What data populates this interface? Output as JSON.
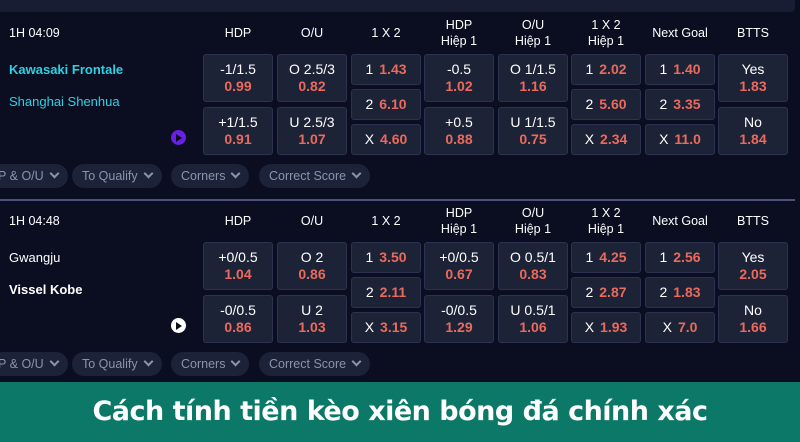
{
  "columns": [
    [
      "HDP"
    ],
    [
      "O/U"
    ],
    [
      "1 X 2"
    ],
    [
      "HDP",
      "Hiệp 1"
    ],
    [
      "O/U",
      "Hiệp 1"
    ],
    [
      "1 X 2",
      "Hiệp 1"
    ],
    [
      "Next Goal"
    ],
    [
      "BTTS"
    ]
  ],
  "matches": [
    {
      "time": "1H  04:09",
      "home": "Kawasaki Frontale",
      "away": "Shanghai Shenhua",
      "team_color": "#2fd0e2",
      "home_bold": true,
      "away_bold": false,
      "play_color": "#6a1fe6",
      "hdp": [
        [
          "-1/1.5",
          "0.99"
        ],
        [
          "+1/1.5",
          "0.91"
        ]
      ],
      "ou": [
        [
          "O 2.5/3",
          "0.82"
        ],
        [
          "U 2.5/3",
          "1.07"
        ]
      ],
      "x12": [
        [
          "1",
          "1.43"
        ],
        [
          "2",
          "6.10"
        ],
        [
          "X",
          "4.60"
        ]
      ],
      "hdp_h1": [
        [
          "-0.5",
          "1.02"
        ],
        [
          "+0.5",
          "0.88"
        ]
      ],
      "ou_h1": [
        [
          "O 1/1.5",
          "1.16"
        ],
        [
          "U 1/1.5",
          "0.75"
        ]
      ],
      "x12_h1": [
        [
          "1",
          "2.02"
        ],
        [
          "2",
          "5.60"
        ],
        [
          "X",
          "2.34"
        ]
      ],
      "next_goal": [
        [
          "1",
          "1.40"
        ],
        [
          "2",
          "3.35"
        ],
        [
          "X",
          "11.0"
        ]
      ],
      "btts": [
        [
          "Yes",
          "1.83"
        ],
        [
          "No",
          "1.84"
        ]
      ]
    },
    {
      "time": "1H  04:48",
      "home": "Gwangju",
      "away": "Vissel Kobe",
      "team_color": "#ffffff",
      "home_bold": false,
      "away_bold": true,
      "play_color": "#ffffff",
      "hdp": [
        [
          "+0/0.5",
          "1.04"
        ],
        [
          "-0/0.5",
          "0.86"
        ]
      ],
      "ou": [
        [
          "O 2",
          "0.86"
        ],
        [
          "U 2",
          "1.03"
        ]
      ],
      "x12": [
        [
          "1",
          "3.50"
        ],
        [
          "2",
          "2.11"
        ],
        [
          "X",
          "3.15"
        ]
      ],
      "hdp_h1": [
        [
          "+0/0.5",
          "0.67"
        ],
        [
          "-0/0.5",
          "1.29"
        ]
      ],
      "ou_h1": [
        [
          "O 0.5/1",
          "0.83"
        ],
        [
          "U 0.5/1",
          "1.06"
        ]
      ],
      "x12_h1": [
        [
          "1",
          "4.25"
        ],
        [
          "2",
          "2.87"
        ],
        [
          "X",
          "1.93"
        ]
      ],
      "next_goal": [
        [
          "1",
          "2.56"
        ],
        [
          "2",
          "1.83"
        ],
        [
          "X",
          "7.0"
        ]
      ],
      "btts": [
        [
          "Yes",
          "2.05"
        ],
        [
          "No",
          "1.66"
        ]
      ]
    }
  ],
  "chips": [
    "HDP & O/U",
    "To Qualify",
    "Corners",
    "Correct Score"
  ],
  "banner": {
    "title": "Cách tính tiền kèo xiên bóng đá chính xác"
  }
}
